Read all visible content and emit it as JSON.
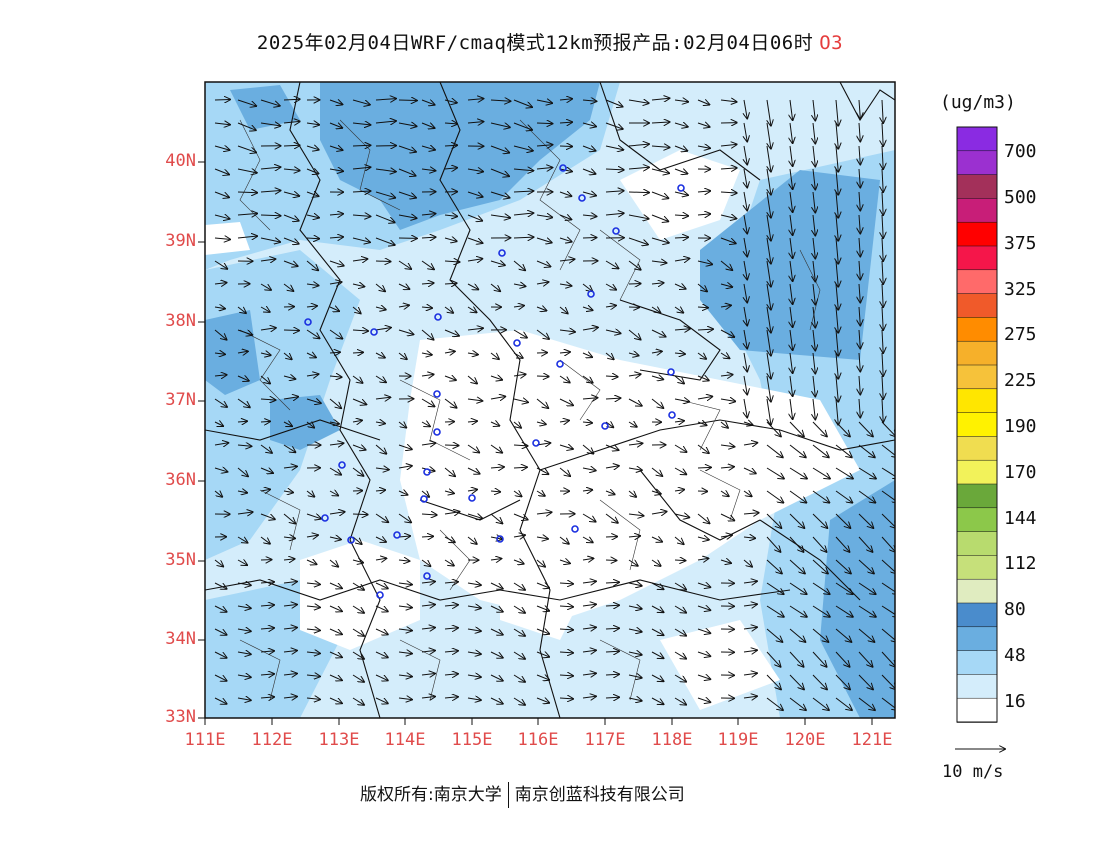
{
  "title": {
    "main": "2025年02月04日WRF/cmaq模式12km预报产品:02月04日06时",
    "species": "O3"
  },
  "map": {
    "lat_labels": [
      "40N",
      "39N",
      "38N",
      "37N",
      "36N",
      "35N",
      "34N",
      "33N"
    ],
    "lon_labels": [
      "111E",
      "112E",
      "113E",
      "114E",
      "115E",
      "116E",
      "117E",
      "118E",
      "119E",
      "120E",
      "121E"
    ]
  },
  "colorbar": {
    "unit": "(ug/m3)",
    "labels": [
      "700",
      "500",
      "375",
      "325",
      "275",
      "225",
      "190",
      "170",
      "144",
      "112",
      "80",
      "48",
      "16"
    ],
    "colors": [
      "#8a2be2",
      "#9b30d0",
      "#a3305a",
      "#c81e78",
      "#ff0000",
      "#f5164a",
      "#ff6a6a",
      "#f05a2a",
      "#ff8c00",
      "#f6b02a",
      "#f6c23a",
      "#ffe600",
      "#fff200",
      "#f0dd50",
      "#f2f25a",
      "#6aa83a",
      "#8cc84a",
      "#b8db6e",
      "#c6e07a",
      "#e0ecc0",
      "#4a8ccc",
      "#6aaee0",
      "#a6d8f6",
      "#d4edfb",
      "#ffffff"
    ]
  },
  "wind_ref": {
    "label": "10 m/s"
  },
  "footer": {
    "left": "版权所有:南京大学",
    "right": "南京创蓝科技有限公司"
  }
}
